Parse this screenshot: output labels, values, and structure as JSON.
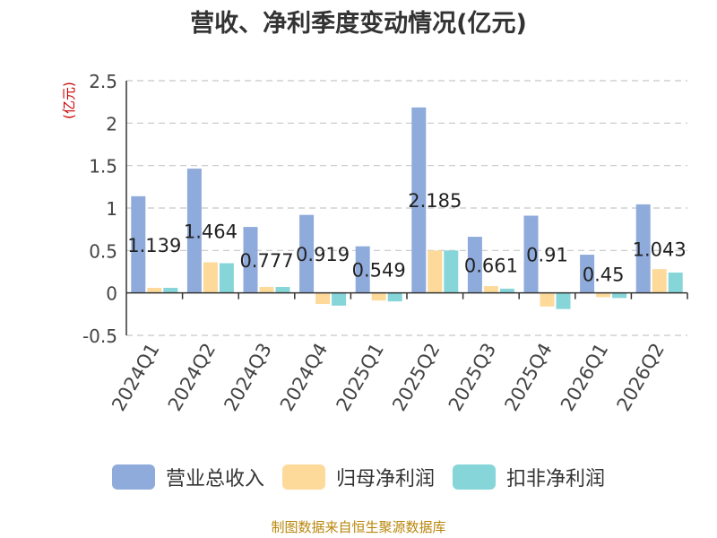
{
  "chart_data": {
    "type": "bar",
    "title": "营收、净利季度变动情况(亿元)",
    "ylabel": "(亿元)",
    "categories": [
      "2024Q1",
      "2024Q2",
      "2024Q3",
      "2024Q4",
      "2025Q1",
      "2025Q2",
      "2025Q3",
      "2025Q4",
      "2026Q1",
      "2026Q2"
    ],
    "series": [
      {
        "name": "营业总收入",
        "color": "#8fabdb",
        "values": [
          1.139,
          1.464,
          0.777,
          0.919,
          0.549,
          2.185,
          0.661,
          0.91,
          0.45,
          1.043
        ],
        "labels": [
          "1.139",
          "1.464",
          "0.777",
          "0.919",
          "0.549",
          "2.185",
          "0.661",
          "0.91",
          "0.45",
          "1.043"
        ]
      },
      {
        "name": "归母净利润",
        "color": "#fdd99a",
        "values": [
          0.06,
          0.36,
          0.07,
          -0.13,
          -0.09,
          0.5,
          0.08,
          -0.16,
          -0.05,
          0.28
        ]
      },
      {
        "name": "扣非净利润",
        "color": "#86d5d8",
        "values": [
          0.06,
          0.35,
          0.07,
          -0.15,
          -0.1,
          0.5,
          0.05,
          -0.19,
          -0.06,
          0.24
        ]
      }
    ],
    "ylim": [
      -0.5,
      2.5
    ],
    "yticks": [
      -0.5,
      0,
      0.5,
      1,
      1.5,
      2,
      2.5
    ],
    "ytick_labels": [
      "-0.5",
      "0",
      "0.5",
      "1",
      "1.5",
      "2",
      "2.5"
    ],
    "grid": true,
    "legend_position": "bottom"
  },
  "source_note": "制图数据来自恒生聚源数据库"
}
